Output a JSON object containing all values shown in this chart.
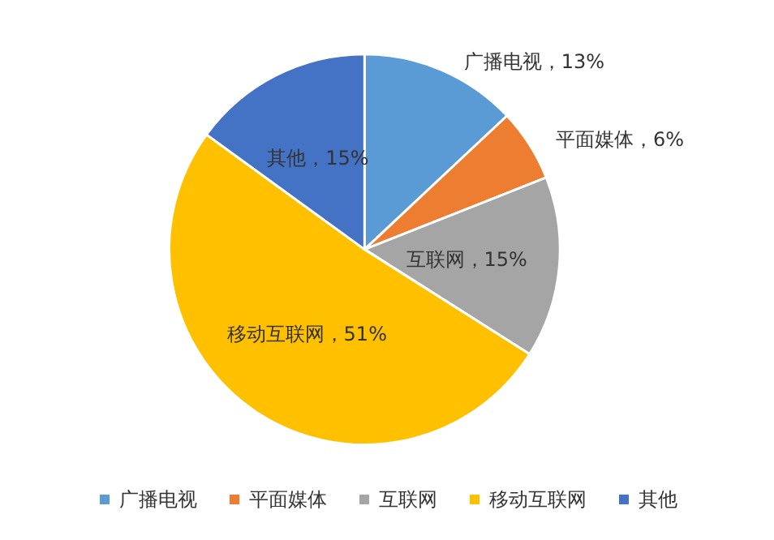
{
  "chart_data": {
    "type": "pie",
    "categories": [
      "广播电视",
      "平面媒体",
      "互联网",
      "移动互联网",
      "其他"
    ],
    "values": [
      13,
      6,
      15,
      51,
      15
    ],
    "colors": [
      "#5b9bd5",
      "#ed7d31",
      "#a5a5a5",
      "#ffc000",
      "#4472c4"
    ],
    "value_labels": [
      "广播电视，13%",
      "平面媒体，6%",
      "互联网，15%",
      "移动互联网，51%",
      "其他，15%"
    ],
    "legend": "bottom"
  }
}
